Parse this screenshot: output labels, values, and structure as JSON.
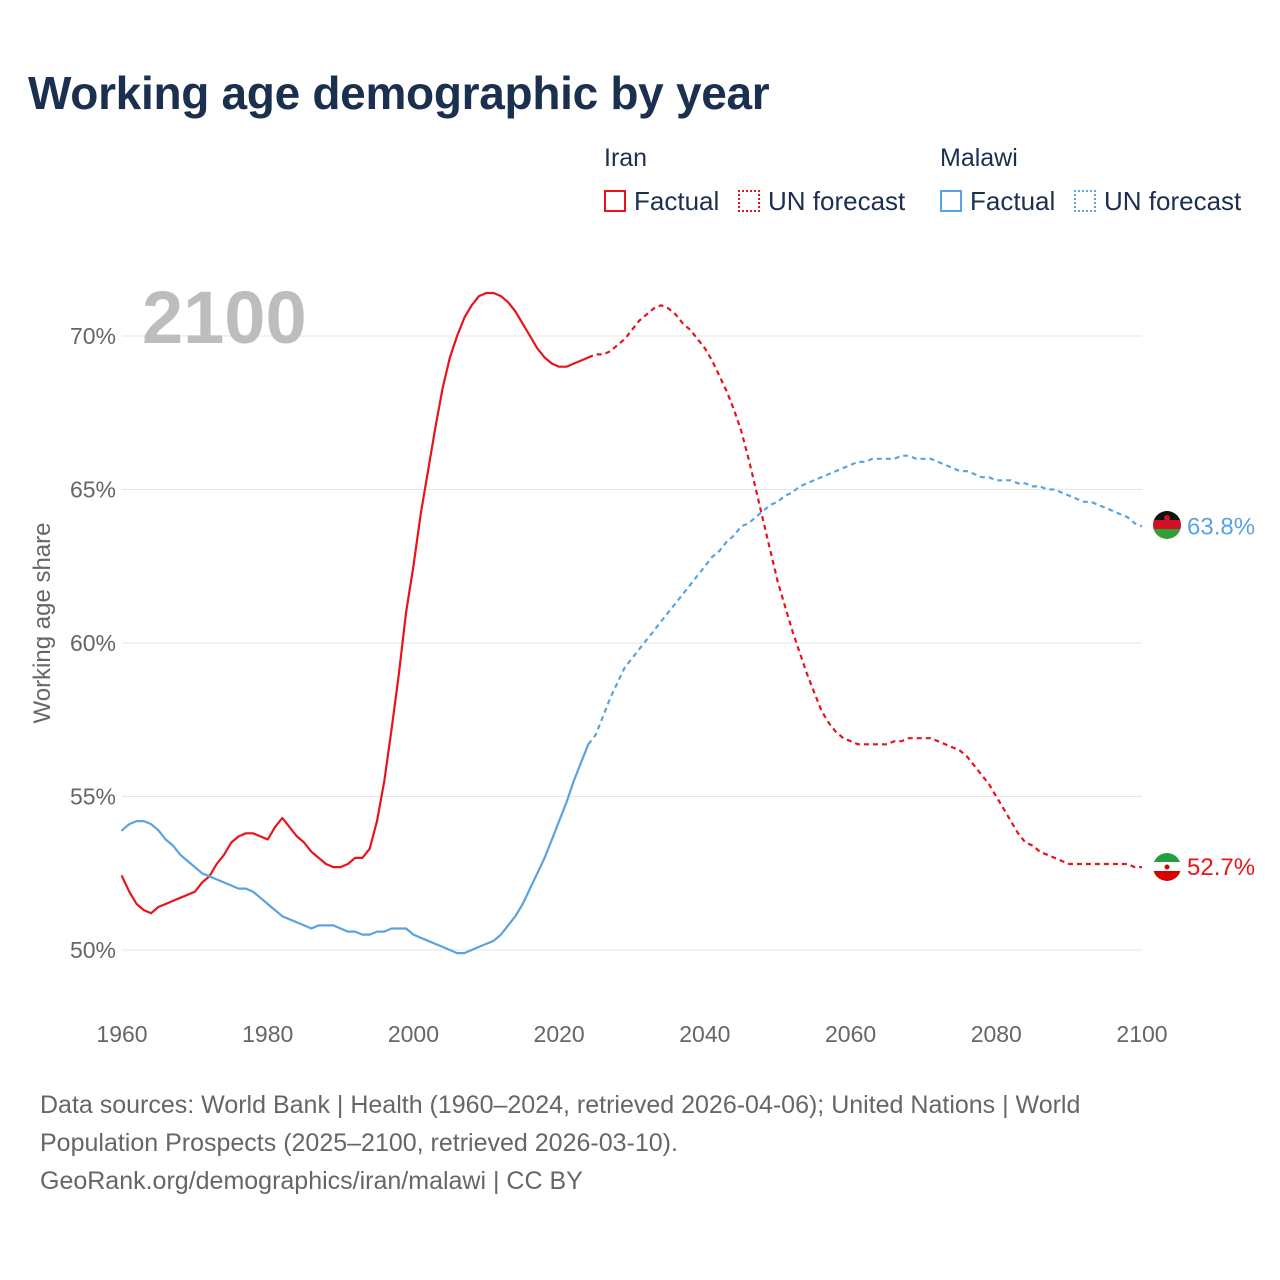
{
  "title": "Working age demographic by year",
  "year_overlay": "2100",
  "legend": {
    "groups": [
      {
        "name": "Iran",
        "factual_label": "Factual",
        "forecast_label": "UN forecast",
        "color": "#e8141c"
      },
      {
        "name": "Malawi",
        "factual_label": "Factual",
        "forecast_label": "UN forecast",
        "color": "#5ba3e0"
      }
    ]
  },
  "sources": {
    "line1": "Data sources: World Bank | Health (1960–2024, retrieved 2026-04-06); United Nations | World",
    "line2": "Population Prospects (2025–2100, retrieved 2026-03-10).",
    "line3": "GeoRank.org/demographics/iran/malawi | CC BY"
  },
  "chart_data": {
    "type": "line",
    "title": "Working age demographic by year",
    "xlabel": "",
    "ylabel": "Working age share",
    "xlim": [
      1960,
      2100
    ],
    "ylim": [
      49,
      72.5
    ],
    "x_ticks": [
      1960,
      1980,
      2000,
      2020,
      2040,
      2060,
      2080,
      2100
    ],
    "x_tick_labels": [
      "1960",
      "1980",
      "2000",
      "2020",
      "2040",
      "2060",
      "2080",
      "2100"
    ],
    "y_ticks": [
      50,
      55,
      60,
      65,
      70
    ],
    "y_tick_labels": [
      "50%",
      "55%",
      "60%",
      "65%",
      "70%"
    ],
    "grid": true,
    "forecast_start": 2024,
    "series": [
      {
        "name": "Iran",
        "color": "#e8141c",
        "end_label": "52.7%",
        "points": [
          [
            1960,
            52.4
          ],
          [
            1961,
            51.9
          ],
          [
            1962,
            51.5
          ],
          [
            1963,
            51.3
          ],
          [
            1964,
            51.2
          ],
          [
            1965,
            51.4
          ],
          [
            1966,
            51.5
          ],
          [
            1967,
            51.6
          ],
          [
            1968,
            51.7
          ],
          [
            1969,
            51.8
          ],
          [
            1970,
            51.9
          ],
          [
            1971,
            52.2
          ],
          [
            1972,
            52.4
          ],
          [
            1973,
            52.8
          ],
          [
            1974,
            53.1
          ],
          [
            1975,
            53.5
          ],
          [
            1976,
            53.7
          ],
          [
            1977,
            53.8
          ],
          [
            1978,
            53.8
          ],
          [
            1979,
            53.7
          ],
          [
            1980,
            53.6
          ],
          [
            1981,
            54.0
          ],
          [
            1982,
            54.3
          ],
          [
            1983,
            54.0
          ],
          [
            1984,
            53.7
          ],
          [
            1985,
            53.5
          ],
          [
            1986,
            53.2
          ],
          [
            1987,
            53.0
          ],
          [
            1988,
            52.8
          ],
          [
            1989,
            52.7
          ],
          [
            1990,
            52.7
          ],
          [
            1991,
            52.8
          ],
          [
            1992,
            53.0
          ],
          [
            1993,
            53.0
          ],
          [
            1994,
            53.3
          ],
          [
            1995,
            54.2
          ],
          [
            1996,
            55.5
          ],
          [
            1997,
            57.2
          ],
          [
            1998,
            59.0
          ],
          [
            1999,
            61.0
          ],
          [
            2000,
            62.5
          ],
          [
            2001,
            64.2
          ],
          [
            2002,
            65.6
          ],
          [
            2003,
            67.0
          ],
          [
            2004,
            68.3
          ],
          [
            2005,
            69.3
          ],
          [
            2006,
            70.0
          ],
          [
            2007,
            70.6
          ],
          [
            2008,
            71.0
          ],
          [
            2009,
            71.3
          ],
          [
            2010,
            71.4
          ],
          [
            2011,
            71.4
          ],
          [
            2012,
            71.3
          ],
          [
            2013,
            71.1
          ],
          [
            2014,
            70.8
          ],
          [
            2015,
            70.4
          ],
          [
            2016,
            70.0
          ],
          [
            2017,
            69.6
          ],
          [
            2018,
            69.3
          ],
          [
            2019,
            69.1
          ],
          [
            2020,
            69.0
          ],
          [
            2021,
            69.0
          ],
          [
            2022,
            69.1
          ],
          [
            2023,
            69.2
          ],
          [
            2024,
            69.3
          ],
          [
            2025,
            69.4
          ],
          [
            2026,
            69.4
          ],
          [
            2027,
            69.5
          ],
          [
            2028,
            69.7
          ],
          [
            2029,
            69.9
          ],
          [
            2030,
            70.2
          ],
          [
            2031,
            70.5
          ],
          [
            2032,
            70.7
          ],
          [
            2033,
            70.9
          ],
          [
            2034,
            71.0
          ],
          [
            2035,
            70.9
          ],
          [
            2036,
            70.7
          ],
          [
            2037,
            70.4
          ],
          [
            2038,
            70.2
          ],
          [
            2039,
            69.9
          ],
          [
            2040,
            69.6
          ],
          [
            2041,
            69.2
          ],
          [
            2042,
            68.7
          ],
          [
            2043,
            68.2
          ],
          [
            2044,
            67.6
          ],
          [
            2045,
            66.9
          ],
          [
            2046,
            66.0
          ],
          [
            2047,
            65.0
          ],
          [
            2048,
            64.0
          ],
          [
            2049,
            63.0
          ],
          [
            2050,
            62.0
          ],
          [
            2051,
            61.2
          ],
          [
            2052,
            60.4
          ],
          [
            2053,
            59.7
          ],
          [
            2054,
            59.0
          ],
          [
            2055,
            58.4
          ],
          [
            2056,
            57.8
          ],
          [
            2057,
            57.4
          ],
          [
            2058,
            57.1
          ],
          [
            2059,
            56.9
          ],
          [
            2060,
            56.8
          ],
          [
            2061,
            56.7
          ],
          [
            2062,
            56.7
          ],
          [
            2063,
            56.7
          ],
          [
            2064,
            56.7
          ],
          [
            2065,
            56.7
          ],
          [
            2066,
            56.8
          ],
          [
            2067,
            56.8
          ],
          [
            2068,
            56.9
          ],
          [
            2069,
            56.9
          ],
          [
            2070,
            56.9
          ],
          [
            2071,
            56.9
          ],
          [
            2072,
            56.8
          ],
          [
            2073,
            56.7
          ],
          [
            2074,
            56.6
          ],
          [
            2075,
            56.5
          ],
          [
            2076,
            56.3
          ],
          [
            2077,
            56.0
          ],
          [
            2078,
            55.7
          ],
          [
            2079,
            55.4
          ],
          [
            2080,
            55.0
          ],
          [
            2081,
            54.6
          ],
          [
            2082,
            54.2
          ],
          [
            2083,
            53.8
          ],
          [
            2084,
            53.5
          ],
          [
            2085,
            53.4
          ],
          [
            2086,
            53.2
          ],
          [
            2087,
            53.1
          ],
          [
            2088,
            53.0
          ],
          [
            2089,
            52.9
          ],
          [
            2090,
            52.8
          ],
          [
            2091,
            52.8
          ],
          [
            2092,
            52.8
          ],
          [
            2093,
            52.8
          ],
          [
            2094,
            52.8
          ],
          [
            2095,
            52.8
          ],
          [
            2096,
            52.8
          ],
          [
            2097,
            52.8
          ],
          [
            2098,
            52.8
          ],
          [
            2099,
            52.7
          ],
          [
            2100,
            52.7
          ]
        ]
      },
      {
        "name": "Malawi",
        "color": "#5ba3e0",
        "end_label": "63.8%",
        "points": [
          [
            1960,
            53.9
          ],
          [
            1961,
            54.1
          ],
          [
            1962,
            54.2
          ],
          [
            1963,
            54.2
          ],
          [
            1964,
            54.1
          ],
          [
            1965,
            53.9
          ],
          [
            1966,
            53.6
          ],
          [
            1967,
            53.4
          ],
          [
            1968,
            53.1
          ],
          [
            1969,
            52.9
          ],
          [
            1970,
            52.7
          ],
          [
            1971,
            52.5
          ],
          [
            1972,
            52.4
          ],
          [
            1973,
            52.3
          ],
          [
            1974,
            52.2
          ],
          [
            1975,
            52.1
          ],
          [
            1976,
            52.0
          ],
          [
            1977,
            52.0
          ],
          [
            1978,
            51.9
          ],
          [
            1979,
            51.7
          ],
          [
            1980,
            51.5
          ],
          [
            1981,
            51.3
          ],
          [
            1982,
            51.1
          ],
          [
            1983,
            51.0
          ],
          [
            1984,
            50.9
          ],
          [
            1985,
            50.8
          ],
          [
            1986,
            50.7
          ],
          [
            1987,
            50.8
          ],
          [
            1988,
            50.8
          ],
          [
            1989,
            50.8
          ],
          [
            1990,
            50.7
          ],
          [
            1991,
            50.6
          ],
          [
            1992,
            50.6
          ],
          [
            1993,
            50.5
          ],
          [
            1994,
            50.5
          ],
          [
            1995,
            50.6
          ],
          [
            1996,
            50.6
          ],
          [
            1997,
            50.7
          ],
          [
            1998,
            50.7
          ],
          [
            1999,
            50.7
          ],
          [
            2000,
            50.5
          ],
          [
            2001,
            50.4
          ],
          [
            2002,
            50.3
          ],
          [
            2003,
            50.2
          ],
          [
            2004,
            50.1
          ],
          [
            2005,
            50.0
          ],
          [
            2006,
            49.9
          ],
          [
            2007,
            49.9
          ],
          [
            2008,
            50.0
          ],
          [
            2009,
            50.1
          ],
          [
            2010,
            50.2
          ],
          [
            2011,
            50.3
          ],
          [
            2012,
            50.5
          ],
          [
            2013,
            50.8
          ],
          [
            2014,
            51.1
          ],
          [
            2015,
            51.5
          ],
          [
            2016,
            52.0
          ],
          [
            2017,
            52.5
          ],
          [
            2018,
            53.0
          ],
          [
            2019,
            53.6
          ],
          [
            2020,
            54.2
          ],
          [
            2021,
            54.8
          ],
          [
            2022,
            55.5
          ],
          [
            2023,
            56.1
          ],
          [
            2024,
            56.7
          ],
          [
            2025,
            57.0
          ],
          [
            2026,
            57.6
          ],
          [
            2027,
            58.2
          ],
          [
            2028,
            58.7
          ],
          [
            2029,
            59.2
          ],
          [
            2030,
            59.5
          ],
          [
            2031,
            59.8
          ],
          [
            2032,
            60.1
          ],
          [
            2033,
            60.4
          ],
          [
            2034,
            60.7
          ],
          [
            2035,
            61.0
          ],
          [
            2036,
            61.3
          ],
          [
            2037,
            61.6
          ],
          [
            2038,
            61.9
          ],
          [
            2039,
            62.2
          ],
          [
            2040,
            62.5
          ],
          [
            2041,
            62.8
          ],
          [
            2042,
            63.0
          ],
          [
            2043,
            63.3
          ],
          [
            2044,
            63.5
          ],
          [
            2045,
            63.8
          ],
          [
            2046,
            63.9
          ],
          [
            2047,
            64.1
          ],
          [
            2048,
            64.3
          ],
          [
            2049,
            64.5
          ],
          [
            2050,
            64.6
          ],
          [
            2051,
            64.8
          ],
          [
            2052,
            64.9
          ],
          [
            2053,
            65.1
          ],
          [
            2054,
            65.2
          ],
          [
            2055,
            65.3
          ],
          [
            2056,
            65.4
          ],
          [
            2057,
            65.5
          ],
          [
            2058,
            65.6
          ],
          [
            2059,
            65.7
          ],
          [
            2060,
            65.8
          ],
          [
            2061,
            65.9
          ],
          [
            2062,
            65.9
          ],
          [
            2063,
            66.0
          ],
          [
            2064,
            66.0
          ],
          [
            2065,
            66.0
          ],
          [
            2066,
            66.0
          ],
          [
            2067,
            66.1
          ],
          [
            2068,
            66.1
          ],
          [
            2069,
            66.0
          ],
          [
            2070,
            66.0
          ],
          [
            2071,
            66.0
          ],
          [
            2072,
            65.9
          ],
          [
            2073,
            65.8
          ],
          [
            2074,
            65.7
          ],
          [
            2075,
            65.6
          ],
          [
            2076,
            65.6
          ],
          [
            2077,
            65.5
          ],
          [
            2078,
            65.4
          ],
          [
            2079,
            65.4
          ],
          [
            2080,
            65.3
          ],
          [
            2081,
            65.3
          ],
          [
            2082,
            65.3
          ],
          [
            2083,
            65.2
          ],
          [
            2084,
            65.2
          ],
          [
            2085,
            65.1
          ],
          [
            2086,
            65.1
          ],
          [
            2087,
            65.0
          ],
          [
            2088,
            65.0
          ],
          [
            2089,
            64.9
          ],
          [
            2090,
            64.8
          ],
          [
            2091,
            64.7
          ],
          [
            2092,
            64.6
          ],
          [
            2093,
            64.6
          ],
          [
            2094,
            64.5
          ],
          [
            2095,
            64.4
          ],
          [
            2096,
            64.3
          ],
          [
            2097,
            64.2
          ],
          [
            2098,
            64.1
          ],
          [
            2099,
            63.9
          ],
          [
            2100,
            63.8
          ]
        ]
      }
    ]
  }
}
